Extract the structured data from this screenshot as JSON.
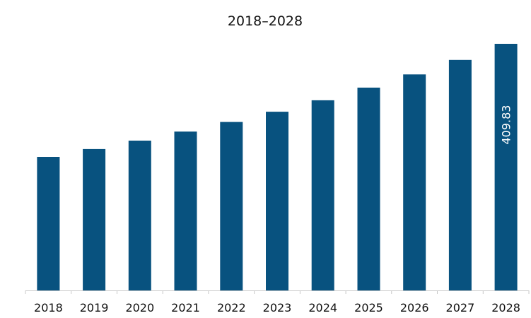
{
  "chart_data": {
    "type": "bar",
    "title": "2018–2028",
    "xlabel": "",
    "ylabel": "",
    "categories": [
      "2018",
      "2019",
      "2020",
      "2021",
      "2022",
      "2023",
      "2024",
      "2025",
      "2026",
      "2027",
      "2028"
    ],
    "values": [
      222,
      235,
      249,
      264,
      280,
      297,
      316,
      337,
      359,
      383,
      409.83
    ],
    "data_labels": [
      "",
      "",
      "",
      "",
      "",
      "",
      "",
      "",
      "",
      "",
      "409.83"
    ],
    "ylim": [
      0,
      430
    ],
    "grid": false,
    "legend": "none",
    "bar_color": "#08527f",
    "axis_color": "#c8c8c8",
    "label_color": "#ffffff"
  }
}
